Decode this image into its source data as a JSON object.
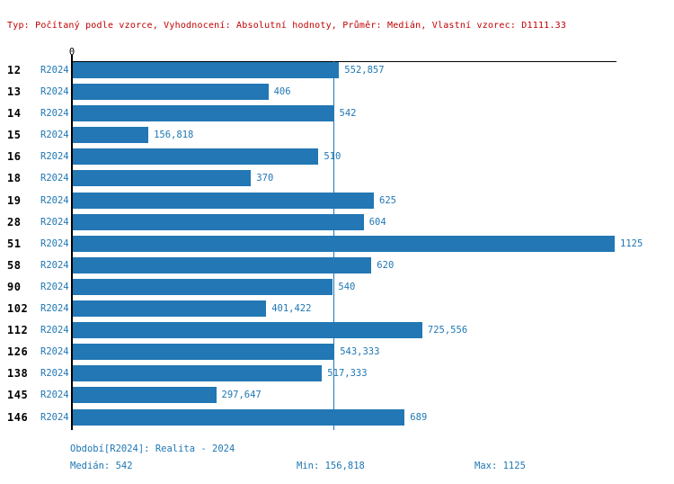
{
  "header": {
    "text": "Typ: Počítaný podle vzorce, Vyhodnocení: Absolutní hodnoty, Průměr: Medián, Vlastní vzorec: D1111.33"
  },
  "chart_data": {
    "type": "bar",
    "orientation": "horizontal",
    "title": "",
    "xlabel": "",
    "ylabel": "",
    "xlim": [
      0,
      1125
    ],
    "zero_tick_label": "0",
    "grid": false,
    "series_label": "R2024",
    "median_reference_line": 542,
    "categories": [
      "12",
      "13",
      "14",
      "15",
      "16",
      "18",
      "19",
      "28",
      "51",
      "58",
      "90",
      "102",
      "112",
      "126",
      "138",
      "145",
      "146"
    ],
    "values": [
      552.857,
      406,
      542,
      156.818,
      510,
      370,
      625,
      604,
      1125,
      620,
      540,
      401.422,
      725.556,
      543.333,
      517.333,
      297.647,
      689
    ],
    "value_labels": [
      "552,857",
      "406",
      "542",
      "156,818",
      "510",
      "370",
      "625",
      "604",
      "1125",
      "620",
      "540",
      "401,422",
      "725,556",
      "543,333",
      "517,333",
      "297,647",
      "689"
    ]
  },
  "footer": {
    "period": "Období[R2024]: Realita - 2024",
    "median": "Medián: 542",
    "min": "Min: 156,818",
    "max": "Max: 1125"
  },
  "colors": {
    "bar-blue": "#2277b4",
    "label-blue": "#1f77b4",
    "header-red": "#c00000",
    "axis-black": "#000000"
  }
}
